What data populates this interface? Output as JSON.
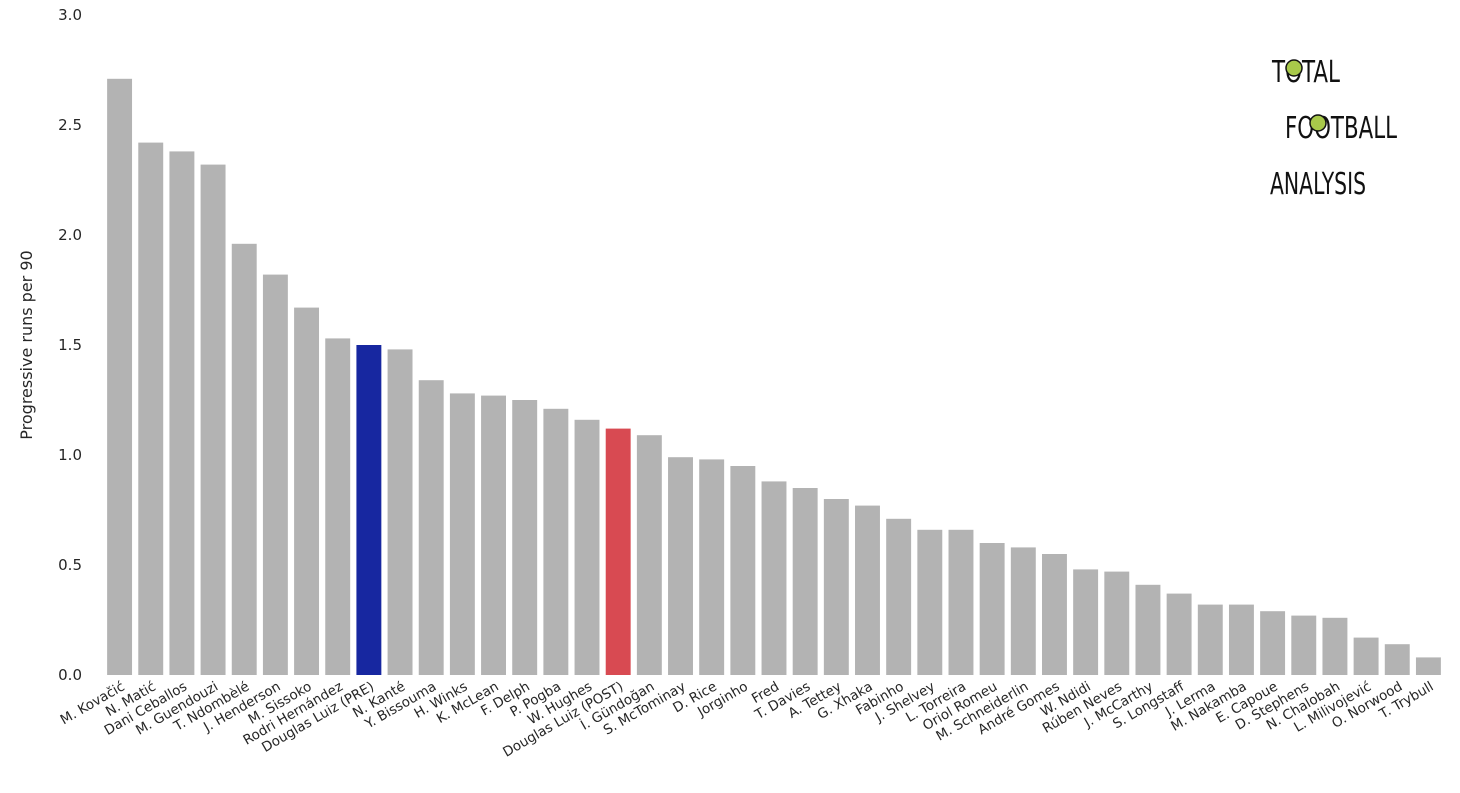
{
  "chart_data": {
    "type": "bar",
    "title": "",
    "xlabel": "",
    "ylabel": "Progressive runs per 90",
    "ylim": [
      0,
      3.0
    ],
    "yticks": [
      "0.0",
      "0.5",
      "1.0",
      "1.5",
      "2.0",
      "2.5",
      "3.0"
    ],
    "grid": false,
    "legend": "none",
    "default_color": "#b3b3b3",
    "highlights": {
      "Douglas Luiz (PRE)": "#1727a0",
      "Douglas Luiz (POST)": "#d84a52"
    },
    "categories": [
      "M. Kovačić",
      "N. Matić",
      "Dani Ceballos",
      "M. Guendouzi",
      "T. Ndombèlé",
      "J. Henderson",
      "M. Sissoko",
      "Rodri Hernández",
      "Douglas Luiz (PRE)",
      "N. Kanté",
      "Y. Bissouma",
      "H. Winks",
      "K. McLean",
      "F. Delph",
      "P. Pogba",
      "W. Hughes",
      "Douglas Luiz (POST)",
      "İ. Gündoğan",
      "S. McTominay",
      "D. Rice",
      "Jorginho",
      "Fred",
      "T. Davies",
      "A. Tettey",
      "G. Xhaka",
      "Fabinho",
      "J. Shelvey",
      "L. Torreira",
      "Oriol Romeu",
      "M. Schneiderlin",
      "André Gomes",
      "W. Ndidi",
      "Rúben Neves",
      "J. McCarthy",
      "S. Longstaff",
      "J. Lerma",
      "M. Nakamba",
      "E. Capoue",
      "D. Stephens",
      "N. Chalobah",
      "L. Milivojević",
      "O. Norwood",
      "T. Trybull"
    ],
    "values": [
      2.71,
      2.42,
      2.38,
      2.32,
      1.96,
      1.82,
      1.67,
      1.53,
      1.5,
      1.48,
      1.34,
      1.28,
      1.27,
      1.25,
      1.21,
      1.16,
      1.12,
      1.09,
      0.99,
      0.98,
      0.95,
      0.88,
      0.85,
      0.8,
      0.77,
      0.71,
      0.66,
      0.66,
      0.6,
      0.58,
      0.55,
      0.48,
      0.47,
      0.41,
      0.37,
      0.32,
      0.32,
      0.29,
      0.27,
      0.26,
      0.17,
      0.14,
      0.08
    ]
  },
  "logo": {
    "line1": "TOTAL",
    "line2": "FOOTBALL",
    "line3": "ANALYSIS"
  }
}
